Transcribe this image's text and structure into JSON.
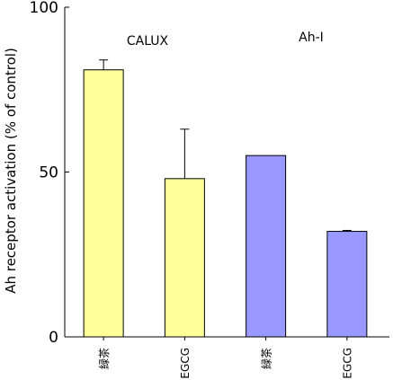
{
  "chart_data": {
    "type": "bar",
    "title": "",
    "xlabel": "",
    "ylabel": "Ah receptor activation (% of control)",
    "ylim": [
      0,
      100
    ],
    "yticks": [
      0,
      50,
      100
    ],
    "categories": [
      "緑茶",
      "EGCG",
      "緑茶",
      "EGCG"
    ],
    "values": [
      81,
      48,
      55,
      32
    ],
    "error_bars": [
      3,
      15,
      0,
      0.3
    ],
    "groups": [
      {
        "label": "CALUX",
        "members": [
          0,
          1
        ],
        "color": "#ffff99"
      },
      {
        "label": "Ah-I",
        "members": [
          2,
          3
        ],
        "color": "#9999ff"
      }
    ],
    "legend": "none",
    "grid": false
  }
}
